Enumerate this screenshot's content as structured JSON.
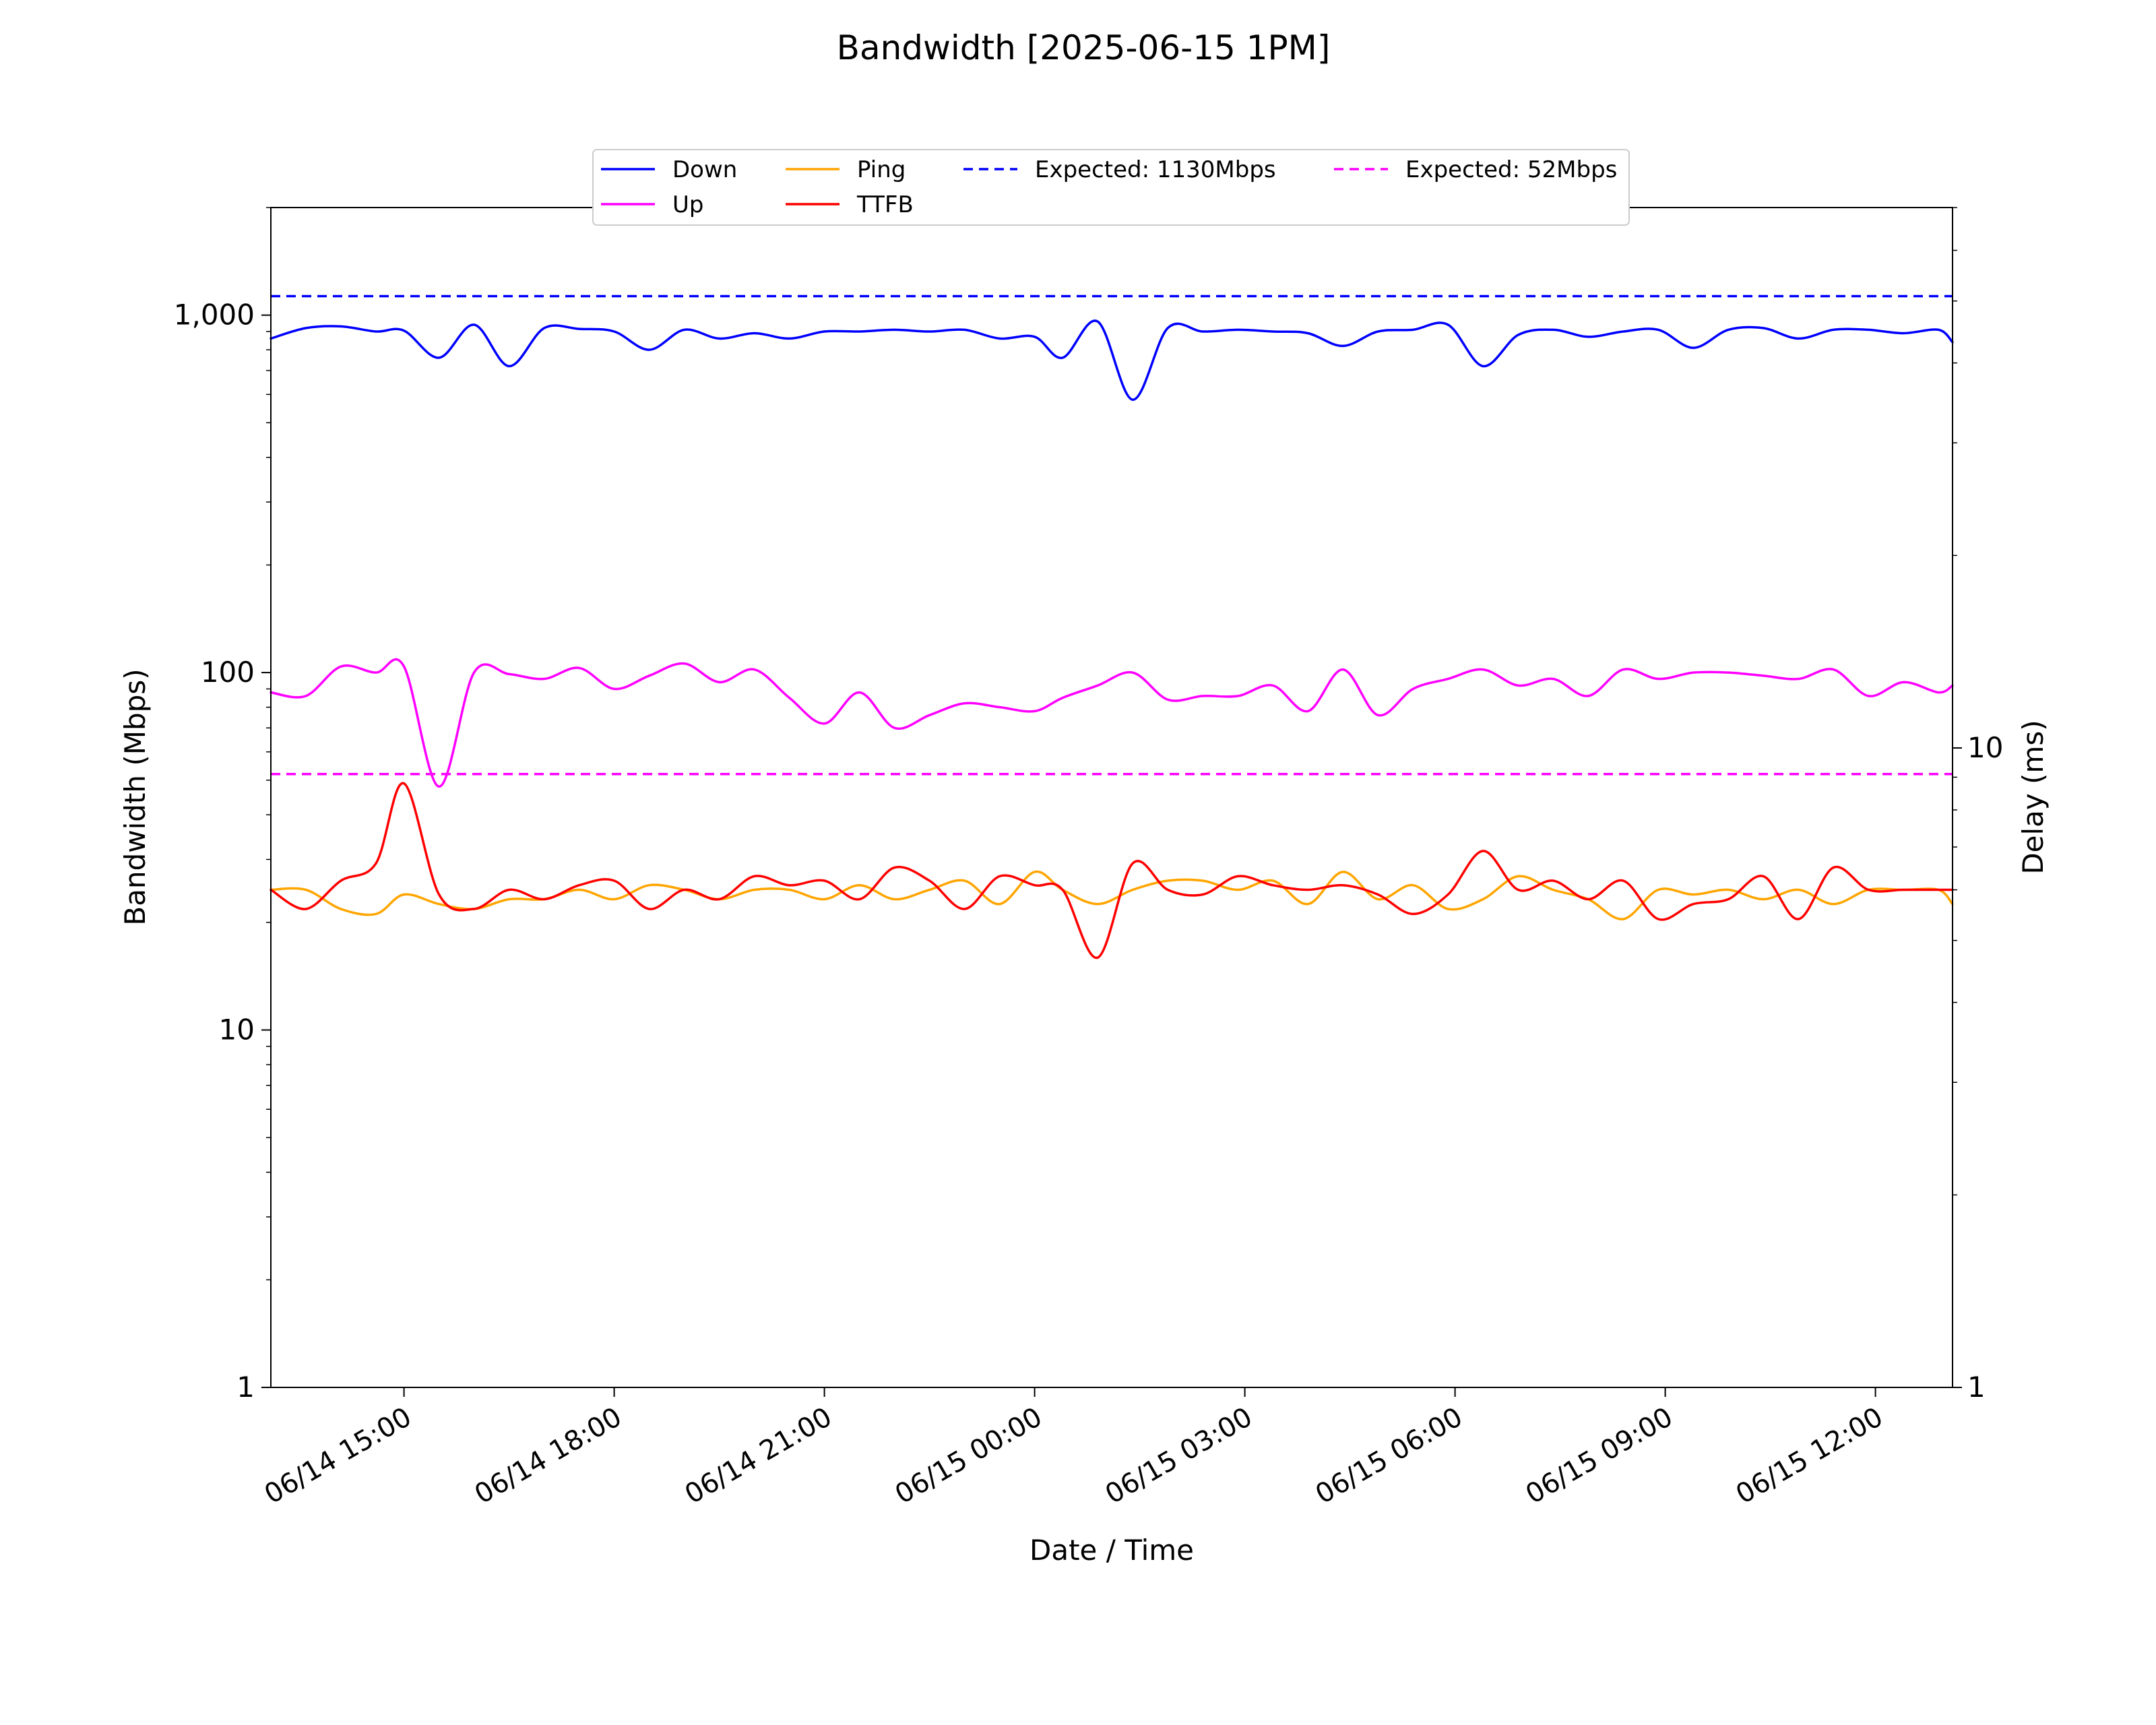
{
  "chart_data": {
    "type": "line",
    "title": "Bandwidth [2025-06-15 1PM]",
    "xlabel": "Date / Time",
    "ylabel": "Bandwidth (Mbps)",
    "y2label": "Delay (ms)",
    "yscale": "log",
    "y2scale": "log",
    "xlim": [
      "2025-06-14 13:06",
      "2025-06-15 13:06"
    ],
    "ylim": [
      1,
      2000
    ],
    "y2lim": [
      1,
      70
    ],
    "grid": false,
    "legend_position": "top-center",
    "x_ticks": [
      {
        "t": "2025-06-14 15:00",
        "label": "06/14 15:00"
      },
      {
        "t": "2025-06-14 18:00",
        "label": "06/14 18:00"
      },
      {
        "t": "2025-06-14 21:00",
        "label": "06/14 21:00"
      },
      {
        "t": "2025-06-15 00:00",
        "label": "06/15 00:00"
      },
      {
        "t": "2025-06-15 03:00",
        "label": "06/15 03:00"
      },
      {
        "t": "2025-06-15 06:00",
        "label": "06/15 06:00"
      },
      {
        "t": "2025-06-15 09:00",
        "label": "06/15 09:00"
      },
      {
        "t": "2025-06-15 12:00",
        "label": "06/15 12:00"
      }
    ],
    "y_ticks": [
      {
        "v": 1,
        "label": "1"
      },
      {
        "v": 10,
        "label": "10"
      },
      {
        "v": 100,
        "label": "100"
      },
      {
        "v": 1000,
        "label": "1,000"
      }
    ],
    "y2_ticks": [
      {
        "v": 1,
        "label": "1"
      },
      {
        "v": 10,
        "label": "10"
      }
    ],
    "series": [
      {
        "name": "Down",
        "axis": "left",
        "color": "#0000ff",
        "style": "solid",
        "x": [
          "2025-06-14 13:06",
          "2025-06-14 13:36",
          "2025-06-14 14:06",
          "2025-06-14 14:36",
          "2025-06-14 15:00",
          "2025-06-14 15:30",
          "2025-06-14 16:00",
          "2025-06-14 16:30",
          "2025-06-14 17:00",
          "2025-06-14 17:30",
          "2025-06-14 18:00",
          "2025-06-14 18:30",
          "2025-06-14 19:00",
          "2025-06-14 19:30",
          "2025-06-14 20:00",
          "2025-06-14 20:30",
          "2025-06-14 21:00",
          "2025-06-14 21:30",
          "2025-06-14 22:00",
          "2025-06-14 22:30",
          "2025-06-14 23:00",
          "2025-06-14 23:30",
          "2025-06-15 00:00",
          "2025-06-15 00:24",
          "2025-06-15 00:54",
          "2025-06-15 01:24",
          "2025-06-15 01:54",
          "2025-06-15 02:24",
          "2025-06-15 02:54",
          "2025-06-15 03:24",
          "2025-06-15 03:54",
          "2025-06-15 04:24",
          "2025-06-15 04:54",
          "2025-06-15 05:24",
          "2025-06-15 05:54",
          "2025-06-15 06:24",
          "2025-06-15 06:54",
          "2025-06-15 07:24",
          "2025-06-15 07:54",
          "2025-06-15 08:24",
          "2025-06-15 08:54",
          "2025-06-15 09:24",
          "2025-06-15 09:54",
          "2025-06-15 10:24",
          "2025-06-15 10:54",
          "2025-06-15 11:24",
          "2025-06-15 11:54",
          "2025-06-15 12:24",
          "2025-06-15 12:54",
          "2025-06-15 13:06"
        ],
        "y": [
          860,
          920,
          930,
          900,
          905,
          760,
          940,
          720,
          920,
          915,
          900,
          800,
          910,
          860,
          890,
          860,
          900,
          900,
          910,
          900,
          910,
          860,
          870,
          760,
          960,
          580,
          920,
          900,
          910,
          900,
          890,
          820,
          900,
          910,
          940,
          720,
          880,
          910,
          870,
          900,
          910,
          810,
          910,
          920,
          860,
          910,
          910,
          890,
          910,
          840
        ]
      },
      {
        "name": "Up",
        "axis": "left",
        "color": "#ff00ff",
        "style": "solid",
        "x": [
          "2025-06-14 13:06",
          "2025-06-14 13:36",
          "2025-06-14 14:06",
          "2025-06-14 14:36",
          "2025-06-14 15:00",
          "2025-06-14 15:30",
          "2025-06-14 16:00",
          "2025-06-14 16:30",
          "2025-06-14 17:00",
          "2025-06-14 17:30",
          "2025-06-14 18:00",
          "2025-06-14 18:30",
          "2025-06-14 19:00",
          "2025-06-14 19:30",
          "2025-06-14 20:00",
          "2025-06-14 20:30",
          "2025-06-14 21:00",
          "2025-06-14 21:30",
          "2025-06-14 22:00",
          "2025-06-14 22:30",
          "2025-06-14 23:00",
          "2025-06-14 23:30",
          "2025-06-15 00:00",
          "2025-06-15 00:24",
          "2025-06-15 00:54",
          "2025-06-15 01:24",
          "2025-06-15 01:54",
          "2025-06-15 02:24",
          "2025-06-15 02:54",
          "2025-06-15 03:24",
          "2025-06-15 03:54",
          "2025-06-15 04:24",
          "2025-06-15 04:54",
          "2025-06-15 05:24",
          "2025-06-15 05:54",
          "2025-06-15 06:24",
          "2025-06-15 06:54",
          "2025-06-15 07:24",
          "2025-06-15 07:54",
          "2025-06-15 08:24",
          "2025-06-15 08:54",
          "2025-06-15 09:24",
          "2025-06-15 09:54",
          "2025-06-15 10:24",
          "2025-06-15 10:54",
          "2025-06-15 11:24",
          "2025-06-15 11:54",
          "2025-06-15 12:24",
          "2025-06-15 12:54",
          "2025-06-15 13:06"
        ],
        "y": [
          88,
          86,
          104,
          100,
          104,
          48,
          100,
          99,
          96,
          103,
          90,
          98,
          106,
          94,
          102,
          85,
          72,
          88,
          70,
          76,
          82,
          80,
          78,
          85,
          92,
          100,
          84,
          86,
          86,
          92,
          78,
          102,
          76,
          90,
          96,
          102,
          92,
          96,
          86,
          102,
          96,
          100,
          100,
          98,
          96,
          102,
          86,
          94,
          88,
          92
        ]
      },
      {
        "name": "Ping",
        "axis": "right",
        "color": "#ffa500",
        "style": "solid",
        "x": [
          "2025-06-14 13:06",
          "2025-06-14 13:36",
          "2025-06-14 14:06",
          "2025-06-14 14:36",
          "2025-06-14 15:00",
          "2025-06-14 15:30",
          "2025-06-14 16:00",
          "2025-06-14 16:30",
          "2025-06-14 17:00",
          "2025-06-14 17:30",
          "2025-06-14 18:00",
          "2025-06-14 18:30",
          "2025-06-14 19:00",
          "2025-06-14 19:30",
          "2025-06-14 20:00",
          "2025-06-14 20:30",
          "2025-06-14 21:00",
          "2025-06-14 21:30",
          "2025-06-14 22:00",
          "2025-06-14 22:30",
          "2025-06-14 23:00",
          "2025-06-14 23:30",
          "2025-06-15 00:00",
          "2025-06-15 00:24",
          "2025-06-15 00:54",
          "2025-06-15 01:24",
          "2025-06-15 01:54",
          "2025-06-15 02:24",
          "2025-06-15 02:54",
          "2025-06-15 03:24",
          "2025-06-15 03:54",
          "2025-06-15 04:24",
          "2025-06-15 04:54",
          "2025-06-15 05:24",
          "2025-06-15 05:54",
          "2025-06-15 06:24",
          "2025-06-15 06:54",
          "2025-06-15 07:24",
          "2025-06-15 07:54",
          "2025-06-15 08:24",
          "2025-06-15 08:54",
          "2025-06-15 09:24",
          "2025-06-15 09:54",
          "2025-06-15 10:24",
          "2025-06-15 10:54",
          "2025-06-15 11:24",
          "2025-06-15 11:54",
          "2025-06-15 12:24",
          "2025-06-15 12:54",
          "2025-06-15 13:06"
        ],
        "y": [
          6.0,
          6.0,
          5.6,
          5.5,
          5.9,
          5.7,
          5.6,
          5.8,
          5.8,
          6.0,
          5.8,
          6.1,
          6.0,
          5.8,
          6.0,
          6.0,
          5.8,
          6.1,
          5.8,
          6.0,
          6.2,
          5.7,
          6.4,
          6.0,
          5.7,
          6.0,
          6.2,
          6.2,
          6.0,
          6.2,
          5.7,
          6.4,
          5.8,
          6.1,
          5.6,
          5.8,
          6.3,
          6.0,
          5.8,
          5.4,
          6.0,
          5.9,
          6.0,
          5.8,
          6.0,
          5.7,
          6.0,
          6.0,
          6.0,
          5.7
        ]
      },
      {
        "name": "TTFB",
        "axis": "right",
        "color": "#ff0000",
        "style": "solid",
        "x": [
          "2025-06-14 13:06",
          "2025-06-14 13:36",
          "2025-06-14 14:06",
          "2025-06-14 14:36",
          "2025-06-14 15:00",
          "2025-06-14 15:30",
          "2025-06-14 16:00",
          "2025-06-14 16:30",
          "2025-06-14 17:00",
          "2025-06-14 17:30",
          "2025-06-14 18:00",
          "2025-06-14 18:30",
          "2025-06-14 19:00",
          "2025-06-14 19:30",
          "2025-06-14 20:00",
          "2025-06-14 20:30",
          "2025-06-14 21:00",
          "2025-06-14 21:30",
          "2025-06-14 22:00",
          "2025-06-14 22:30",
          "2025-06-14 23:00",
          "2025-06-14 23:30",
          "2025-06-15 00:00",
          "2025-06-15 00:24",
          "2025-06-15 00:54",
          "2025-06-15 01:24",
          "2025-06-15 01:54",
          "2025-06-15 02:24",
          "2025-06-15 02:54",
          "2025-06-15 03:24",
          "2025-06-15 03:54",
          "2025-06-15 04:24",
          "2025-06-15 04:54",
          "2025-06-15 05:24",
          "2025-06-15 05:54",
          "2025-06-15 06:24",
          "2025-06-15 06:54",
          "2025-06-15 07:24",
          "2025-06-15 07:54",
          "2025-06-15 08:24",
          "2025-06-15 08:54",
          "2025-06-15 09:24",
          "2025-06-15 09:54",
          "2025-06-15 10:24",
          "2025-06-15 10:54",
          "2025-06-15 11:24",
          "2025-06-15 11:54",
          "2025-06-15 12:24",
          "2025-06-15 12:54",
          "2025-06-15 13:06"
        ],
        "y": [
          6.0,
          5.6,
          6.2,
          6.6,
          8.8,
          5.9,
          5.6,
          6.0,
          5.8,
          6.1,
          6.2,
          5.6,
          6.0,
          5.8,
          6.3,
          6.1,
          6.2,
          5.8,
          6.5,
          6.2,
          5.6,
          6.3,
          6.1,
          6.0,
          4.7,
          6.6,
          6.0,
          5.9,
          6.3,
          6.1,
          6.0,
          6.1,
          5.9,
          5.5,
          5.9,
          6.9,
          6.0,
          6.2,
          5.8,
          6.2,
          5.4,
          5.7,
          5.8,
          6.3,
          5.4,
          6.5,
          6.0,
          6.0,
          6.0,
          6.0
        ]
      },
      {
        "name": "Expected: 1130Mbps",
        "axis": "left",
        "color": "#0000ff",
        "style": "dashed",
        "x": [
          "2025-06-14 13:06",
          "2025-06-15 13:06"
        ],
        "y": [
          1130,
          1130
        ]
      },
      {
        "name": "Expected: 52Mbps",
        "axis": "left",
        "color": "#ff00ff",
        "style": "dashed",
        "x": [
          "2025-06-14 13:06",
          "2025-06-15 13:06"
        ],
        "y": [
          52,
          52
        ]
      }
    ]
  }
}
